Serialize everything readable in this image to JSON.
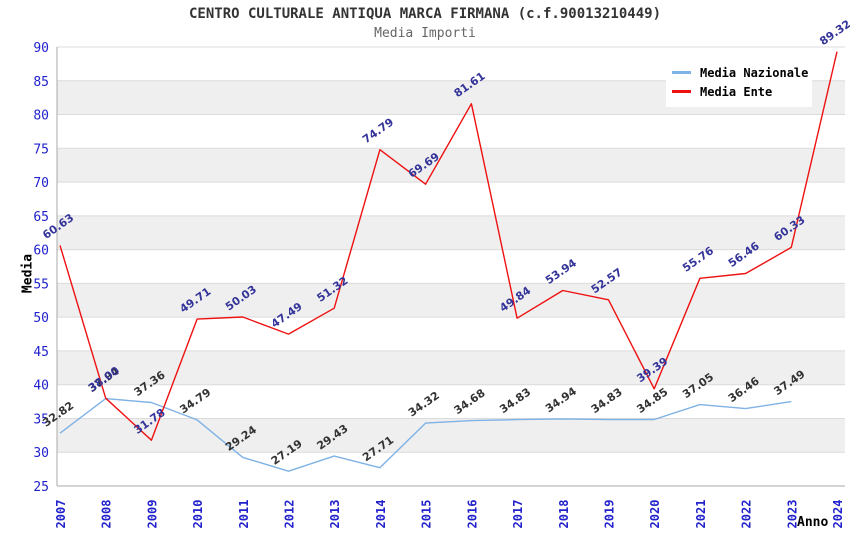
{
  "header": {
    "title": "CENTRO CULTURALE ANTIQUA MARCA FIRMANA (c.f.90013210449)",
    "subtitle": "Media Importi"
  },
  "axes": {
    "y_title": "Media",
    "x_title": "Anno"
  },
  "legend": {
    "position": "top-right",
    "items": [
      {
        "label": "Media Nazionale",
        "color": "#7fb2e5"
      },
      {
        "label": "Media Ente",
        "color": "#ee1111"
      }
    ]
  },
  "colors": {
    "band_gray": "#efefef",
    "grid_line": "#dcdcdc",
    "axis_frame": "#aaaaaa",
    "tick_label_blue": "#2222cc",
    "nazionale_line": "#7fb2e5",
    "ente_line": "#ee1111",
    "nazionale_value_label": "#333333",
    "ente_value_label": "#333399"
  },
  "chart_data": {
    "type": "line",
    "title": "CENTRO CULTURALE ANTIQUA MARCA FIRMANA (c.f.90013210449)",
    "subtitle": "Media Importi",
    "xlabel": "Anno",
    "ylabel": "Media",
    "ylim": [
      25,
      90
    ],
    "ytick_step": 5,
    "grid": "horizontal gridlines with alternating white/gray bands every 5 units",
    "legend_position": "top-right",
    "value_label_format": "2-decimals, rotated",
    "categories": [
      2007,
      2008,
      2009,
      2010,
      2011,
      2012,
      2013,
      2014,
      2015,
      2016,
      2017,
      2018,
      2019,
      2020,
      2021,
      2022,
      2023,
      2024
    ],
    "series": [
      {
        "name": "Media Nazionale",
        "color": "#7fb2e5",
        "label_color": "#333333",
        "values": [
          32.82,
          37.94,
          37.36,
          34.79,
          29.24,
          27.19,
          29.43,
          27.71,
          34.32,
          34.68,
          34.83,
          34.94,
          34.83,
          34.85,
          37.05,
          36.46,
          37.49,
          null
        ]
      },
      {
        "name": "Media Ente",
        "color": "#ee1111",
        "label_color": "#333399",
        "values": [
          60.63,
          38.0,
          31.78,
          49.71,
          50.03,
          47.49,
          51.32,
          74.79,
          69.69,
          81.61,
          49.84,
          53.94,
          52.57,
          39.39,
          55.76,
          56.46,
          60.33,
          89.32
        ]
      }
    ]
  }
}
